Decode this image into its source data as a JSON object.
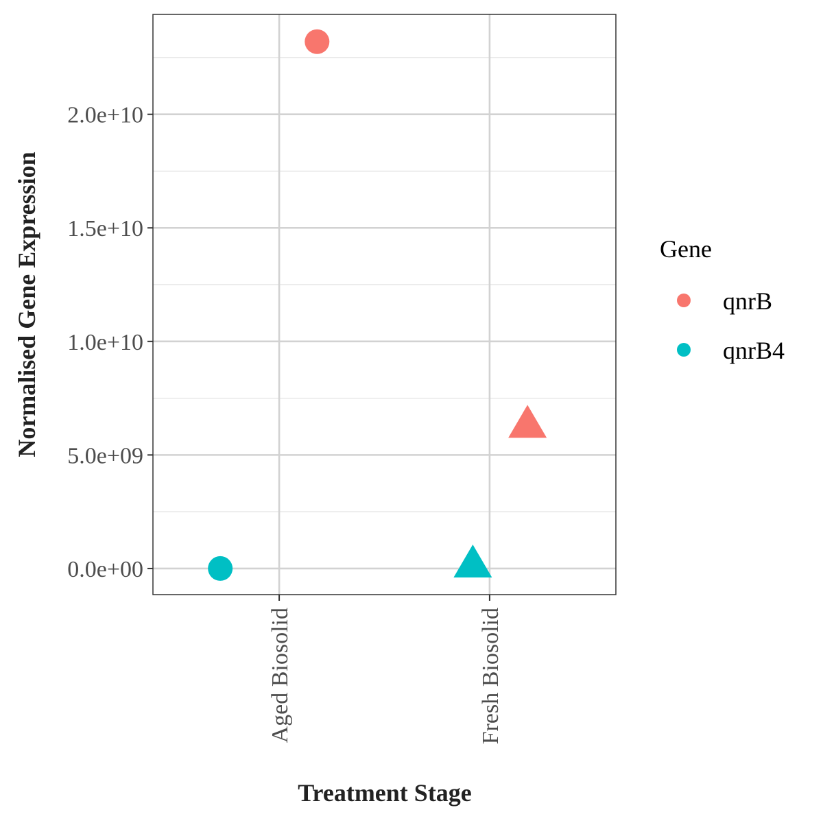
{
  "chart_data": {
    "type": "scatter",
    "xlabel": "Treatment Stage",
    "ylabel": "Normalised Gene Expression",
    "categories": [
      "Aged Biosolid",
      "Fresh Biosolid"
    ],
    "y_ticks": [
      0,
      5000000000,
      10000000000,
      15000000000,
      20000000000
    ],
    "y_tick_labels": [
      "0.0e+00",
      "5.0e+09",
      "1.0e+10",
      "1.5e+10",
      "2.0e+10"
    ],
    "ylim": [
      -1150000000,
      24400000000
    ],
    "grid": true,
    "legend": {
      "title": "Gene",
      "position": "right",
      "entries": [
        {
          "name": "qnrB",
          "color": "#F8766D"
        },
        {
          "name": "qnrB4",
          "color": "#00BFC4"
        }
      ]
    },
    "points": [
      {
        "series": "qnrB",
        "category": "Aged Biosolid",
        "dodge": 0.18,
        "y": 23200000000,
        "shape": "circle",
        "color": "#F8766D"
      },
      {
        "series": "qnrB4",
        "category": "Aged Biosolid",
        "dodge": -0.28,
        "y": 0,
        "shape": "circle",
        "color": "#00BFC4"
      },
      {
        "series": "qnrB",
        "category": "Fresh Biosolid",
        "dodge": 0.18,
        "y": 6300000000,
        "shape": "triangle",
        "color": "#F8766D"
      },
      {
        "series": "qnrB4",
        "category": "Fresh Biosolid",
        "dodge": -0.08,
        "y": 150000000,
        "shape": "triangle",
        "color": "#00BFC4"
      }
    ]
  }
}
